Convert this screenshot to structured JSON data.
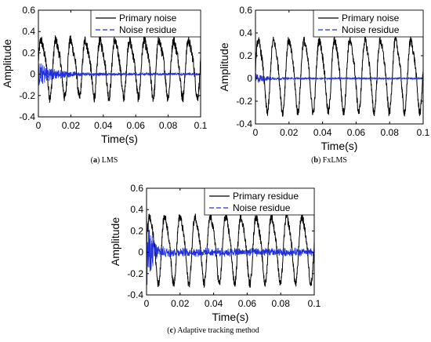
{
  "chart_data": [
    {
      "type": "line",
      "caption_letter": "a",
      "caption_text": "LMS",
      "xlabel": "Time(s)",
      "ylabel": "Amplitude",
      "xlim": [
        0,
        0.1
      ],
      "ylim": [
        -0.4,
        0.6
      ],
      "x_ticks": [
        "0",
        "0.02",
        "0.04",
        "0.06",
        "0.08",
        "0.1"
      ],
      "y_ticks": [
        "0.6",
        "0.4",
        "0.2",
        "0",
        "-0.2",
        "-0.4"
      ],
      "legend_position": "top-right",
      "signal_frequency_hz": 110,
      "series": [
        {
          "name": "Primary noise",
          "color": "#000000",
          "style": "solid",
          "amplitude": 0.25,
          "offset": 0.08,
          "noise": 0.05
        },
        {
          "name": "Noise residue",
          "color": "#1f2fe0",
          "style": "dashed",
          "amplitude": 0.01,
          "initial_amplitude": 0.12,
          "decay_time_s": 0.01,
          "noise": 0.01
        }
      ]
    },
    {
      "type": "line",
      "caption_letter": "b",
      "caption_text": "FxLMS",
      "xlabel": "Time(s)",
      "ylabel": "Amplitude",
      "xlim": [
        0,
        0.1
      ],
      "ylim": [
        -0.4,
        0.6
      ],
      "x_ticks": [
        "0",
        "0.02",
        "0.04",
        "0.06",
        "0.08",
        "0.1"
      ],
      "y_ticks": [
        "0.6",
        "0.4",
        "0.2",
        "0",
        "-0.2",
        "-0.4"
      ],
      "legend_position": "top-right",
      "signal_frequency_hz": 110,
      "series": [
        {
          "name": "Primary noise",
          "color": "#000000",
          "style": "solid",
          "amplitude": 0.3,
          "offset": 0.05,
          "noise": 0.04
        },
        {
          "name": "Noise residue",
          "color": "#1f2fe0",
          "style": "dashed",
          "amplitude": 0.005,
          "initial_amplitude": 0.05,
          "decay_time_s": 0.006,
          "noise": 0.008
        }
      ]
    },
    {
      "type": "line",
      "caption_letter": "c",
      "caption_text": "Adaptive tracking method",
      "xlabel": "Time(s)",
      "ylabel": "Amplitude",
      "xlim": [
        0,
        0.1
      ],
      "ylim": [
        -0.4,
        0.6
      ],
      "x_ticks": [
        "0",
        "0.02",
        "0.04",
        "0.06",
        "0.08",
        "0.1"
      ],
      "y_ticks": [
        "0.6",
        "0.4",
        "0.2",
        "0",
        "-0.2",
        "-0.4"
      ],
      "legend_position": "top-right",
      "signal_frequency_hz": 110,
      "series": [
        {
          "name": "Primary residue",
          "color": "#000000",
          "style": "solid",
          "amplitude": 0.3,
          "offset": 0.05,
          "noise": 0.04
        },
        {
          "name": "Noise residue",
          "color": "#1f2fe0",
          "style": "dashed",
          "amplitude": 0.03,
          "initial_amplitude": 0.4,
          "decay_time_s": 0.003,
          "noise": 0.03
        }
      ]
    }
  ]
}
